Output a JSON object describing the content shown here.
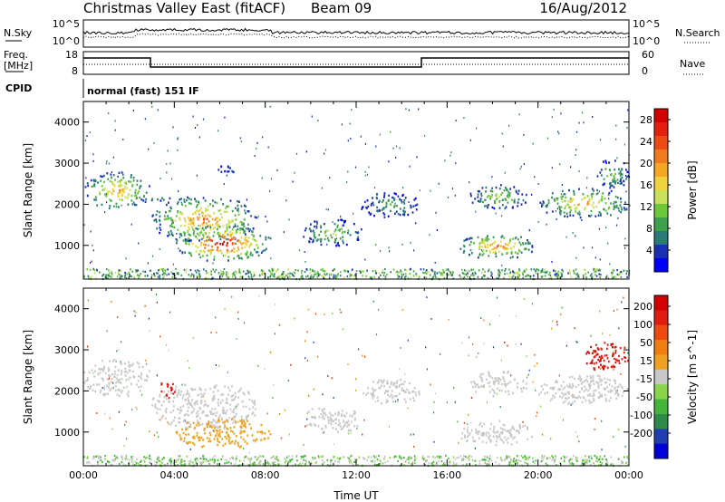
{
  "header": {
    "station": "Christmas Valley East (fitACF)",
    "beam": "Beam 09",
    "date": "16/Aug/2012"
  },
  "top_panels": {
    "nsky_label": "N.Sky",
    "nsky_ticks": [
      "10^5",
      "10^0"
    ],
    "nsearch_label": "N.Search",
    "nsearch_ticks": [
      "10^5",
      "10^0"
    ],
    "freq_label": "Freq.",
    "freq_unit": "[MHz]",
    "freq_ticks": [
      "18",
      "8"
    ],
    "nave_label": "Nave",
    "nave_ticks": [
      "60",
      "0"
    ],
    "cpid_label": "CPID",
    "cpid_text": "normal (fast) 151 IF"
  },
  "chart_data": [
    {
      "type": "heatmap",
      "title": "",
      "xlabel": "",
      "ylabel": "Slant Range [km]",
      "x_ticks": [
        "00:00",
        "04:00",
        "08:00",
        "12:00",
        "16:00",
        "20:00",
        "00:00"
      ],
      "xlim_hours": [
        0,
        24
      ],
      "ylim": [
        180,
        4500
      ],
      "y_ticks": [
        1000,
        2000,
        3000,
        4000
      ],
      "colorbar": {
        "label": "Power [dB]",
        "ticks": [
          "4",
          "8",
          "12",
          "16",
          "20",
          "24",
          "28"
        ],
        "colors": [
          "#0000ff",
          "#1b2fb4",
          "#2a7a7a",
          "#3fa14b",
          "#6bc83a",
          "#c8e05a",
          "#f0d23c",
          "#f5a623",
          "#f07a1e",
          "#ee4a14",
          "#e51f10",
          "#d40000"
        ],
        "range": [
          0,
          30
        ]
      },
      "echo_regions": [
        {
          "x0": 0.0,
          "x1": 2.9,
          "y0": 1900,
          "y1": 2800,
          "peak": 20
        },
        {
          "x0": 2.5,
          "x1": 3.8,
          "y0": 2100,
          "y1": 2200,
          "peak": 10
        },
        {
          "x0": 3.0,
          "x1": 7.6,
          "y0": 1100,
          "y1": 2200,
          "peak": 22
        },
        {
          "x0": 4.0,
          "x1": 8.2,
          "y0": 650,
          "y1": 1500,
          "peak": 29
        },
        {
          "x0": 5.5,
          "x1": 7.0,
          "y0": 2800,
          "y1": 2950,
          "peak": 8
        },
        {
          "x0": 9.6,
          "x1": 12.2,
          "y0": 1000,
          "y1": 1650,
          "peak": 14
        },
        {
          "x0": 12.2,
          "x1": 14.8,
          "y0": 1700,
          "y1": 2300,
          "peak": 10
        },
        {
          "x0": 16.5,
          "x1": 19.8,
          "y0": 700,
          "y1": 1300,
          "peak": 22
        },
        {
          "x0": 17.0,
          "x1": 19.5,
          "y0": 1900,
          "y1": 2500,
          "peak": 14
        },
        {
          "x0": 20.0,
          "x1": 24.0,
          "y0": 1700,
          "y1": 2400,
          "peak": 20
        },
        {
          "x0": 22.5,
          "x1": 24.0,
          "y0": 2400,
          "y1": 3100,
          "peak": 12
        }
      ]
    },
    {
      "type": "heatmap",
      "title": "",
      "xlabel": "Time UT",
      "ylabel": "Slant Range [km]",
      "x_ticks": [
        "00:00",
        "04:00",
        "08:00",
        "12:00",
        "16:00",
        "20:00",
        "00:00"
      ],
      "xlim_hours": [
        0,
        24
      ],
      "ylim": [
        180,
        4500
      ],
      "y_ticks": [
        1000,
        2000,
        3000,
        4000
      ],
      "colorbar": {
        "label": "Velocity [m s^-1]",
        "ticks": [
          "200",
          "100",
          "50",
          "15",
          "-15",
          "-50",
          "-100",
          "-200"
        ],
        "colors": [
          "#0000d8",
          "#1f3fb0",
          "#2f8a4a",
          "#45b53a",
          "#88d44a",
          "#c8c8c8",
          "#f0a020",
          "#f07d10",
          "#ee4a10",
          "#e01c10",
          "#d40000"
        ],
        "range": [
          -250,
          250
        ]
      },
      "echo_regions": [
        {
          "x0": 0.0,
          "x1": 2.9,
          "y0": 1900,
          "y1": 2800,
          "vel": 0
        },
        {
          "x0": 3.0,
          "x1": 7.6,
          "y0": 1100,
          "y1": 2200,
          "vel": 0
        },
        {
          "x0": 3.3,
          "x1": 4.0,
          "y0": 1850,
          "y1": 2250,
          "vel": 200
        },
        {
          "x0": 4.0,
          "x1": 8.2,
          "y0": 650,
          "y1": 1350,
          "vel": 35
        },
        {
          "x0": 9.6,
          "x1": 12.2,
          "y0": 1000,
          "y1": 1650,
          "vel": 0
        },
        {
          "x0": 12.2,
          "x1": 14.8,
          "y0": 1700,
          "y1": 2300,
          "vel": 0
        },
        {
          "x0": 16.5,
          "x1": 19.8,
          "y0": 700,
          "y1": 1300,
          "vel": 0
        },
        {
          "x0": 17.0,
          "x1": 19.5,
          "y0": 1900,
          "y1": 2500,
          "vel": 0
        },
        {
          "x0": 20.0,
          "x1": 24.0,
          "y0": 1700,
          "y1": 2400,
          "vel": 0
        },
        {
          "x0": 22.0,
          "x1": 24.0,
          "y0": 2500,
          "y1": 3200,
          "vel": 200
        }
      ]
    }
  ]
}
